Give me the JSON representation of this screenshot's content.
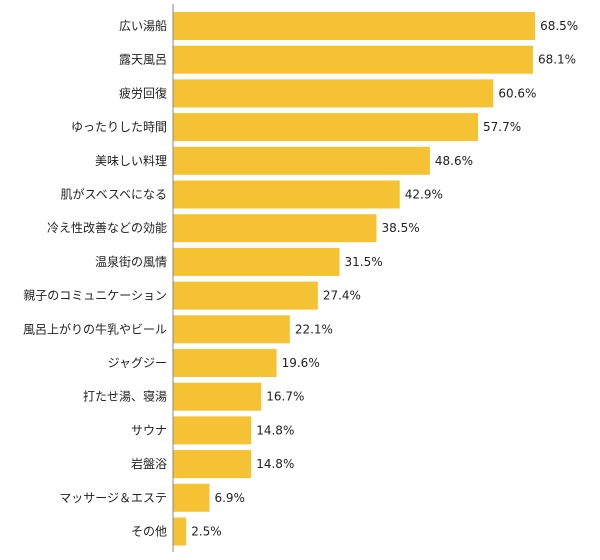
{
  "chart_data": {
    "type": "bar",
    "orientation": "horizontal",
    "categories": [
      "広い湯船",
      "露天風呂",
      "疲労回復",
      "ゆったりした時間",
      "美味しい料理",
      "肌がスベスベになる",
      "冷え性改善などの効能",
      "温泉街の風情",
      "親子のコミュニケーション",
      "風呂上がりの牛乳やビール",
      "ジャグジー",
      "打たせ湯、寝湯",
      "サウナ",
      "岩盤浴",
      "マッサージ＆エステ",
      "その他"
    ],
    "values": [
      68.5,
      68.1,
      60.6,
      57.7,
      48.6,
      42.9,
      38.5,
      31.5,
      27.4,
      22.1,
      19.6,
      16.7,
      14.8,
      14.8,
      6.9,
      2.5
    ],
    "value_labels": [
      "68.5%",
      "68.1%",
      "60.6%",
      "57.7%",
      "48.6%",
      "42.9%",
      "38.5%",
      "31.5%",
      "27.4%",
      "22.1%",
      "19.6%",
      "16.7%",
      "14.8%",
      "14.8%",
      "6.9%",
      "2.5%"
    ],
    "title": "",
    "xlabel": "",
    "ylabel": "",
    "xlim": [
      0,
      77
    ],
    "grid": false,
    "legend": "none",
    "bar_color": "#F4C232",
    "axis_color": "#888888"
  }
}
